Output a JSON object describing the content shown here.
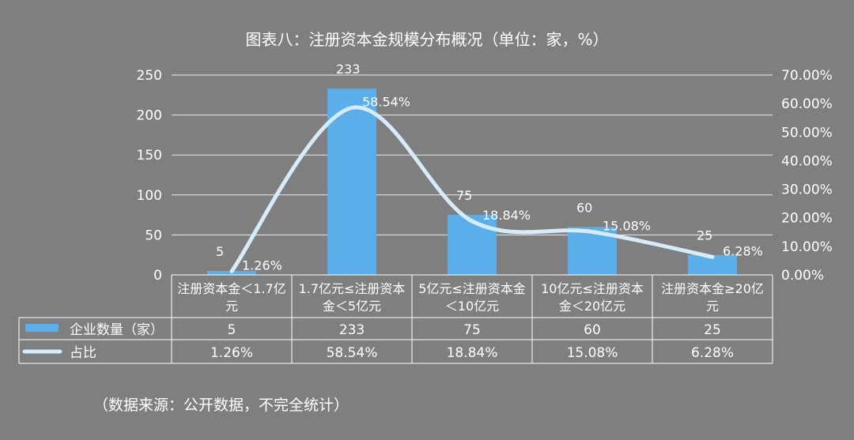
{
  "title": "图表八：注册资本金规模分布概况（单位：家，%）",
  "source": "（数据来源：公开数据，不完全统计）",
  "colors": {
    "background": "#7f7f7f",
    "bar": "#5aaeea",
    "line": "#d6ecfb",
    "grid": "#ffffff",
    "text": "#ffffff"
  },
  "chart_data": {
    "type": "bar",
    "categories": [
      [
        "注册资本金＜1.7亿",
        "元"
      ],
      [
        "1.7亿元≤注册资本",
        "金＜5亿元"
      ],
      [
        "5亿元≤注册资本金",
        "＜10亿元"
      ],
      [
        "10亿元≤注册资本",
        "金＜20亿元"
      ],
      [
        "注册资本金≥20亿",
        "元"
      ]
    ],
    "series": [
      {
        "name": "企业数量（家）",
        "type": "bar",
        "axis": "left",
        "values": [
          5,
          233,
          75,
          60,
          25
        ],
        "labels": [
          "5",
          "233",
          "75",
          "60",
          "25"
        ]
      },
      {
        "name": "占比",
        "type": "line",
        "smooth": true,
        "axis": "right",
        "values": [
          1.26,
          58.54,
          18.84,
          15.08,
          6.28
        ],
        "labels": [
          "1.26%",
          "58.54%",
          "18.84%",
          "15.08%",
          "6.28%"
        ]
      }
    ],
    "y_left": {
      "min": 0,
      "max": 250,
      "ticks": [
        "0",
        "50",
        "100",
        "150",
        "200",
        "250"
      ]
    },
    "y_right": {
      "min": 0,
      "max": 70,
      "ticks": [
        "0.00%",
        "10.00%",
        "20.00%",
        "30.00%",
        "40.00%",
        "50.00%",
        "60.00%",
        "70.00%"
      ]
    },
    "grid": true,
    "data_table": true
  }
}
